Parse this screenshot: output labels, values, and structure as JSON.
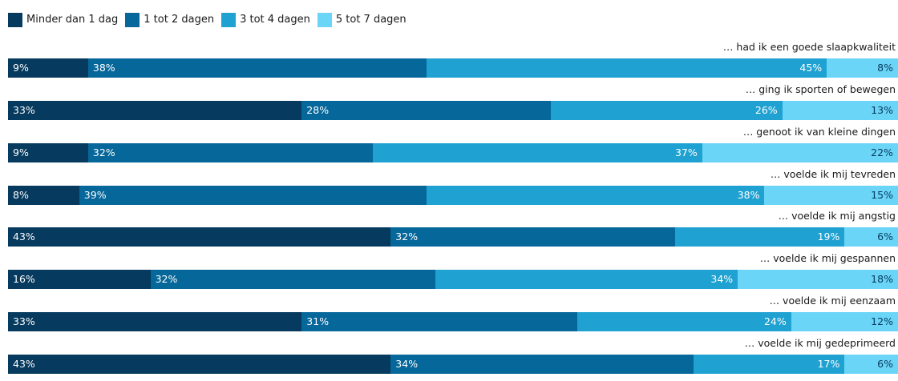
{
  "chart_data": {
    "type": "bar",
    "orientation": "horizontal",
    "stacked": true,
    "legend": "top-left",
    "series": [
      {
        "name": "Minder dan 1 dag",
        "color": "#063a5e",
        "text_color": "#ffffff",
        "values": [
          9,
          33,
          9,
          8,
          43,
          16,
          33,
          43
        ]
      },
      {
        "name": "1 tot 2 dagen",
        "color": "#06679a",
        "text_color": "#ffffff",
        "values": [
          38,
          28,
          32,
          39,
          32,
          32,
          31,
          34
        ]
      },
      {
        "name": "3 tot 4 dagen",
        "color": "#1fa1d1",
        "text_color": "#ffffff",
        "values": [
          45,
          26,
          37,
          38,
          19,
          34,
          24,
          17
        ]
      },
      {
        "name": "5 tot 7 dagen",
        "color": "#6ad5f7",
        "text_color": "#063a5e",
        "values": [
          8,
          13,
          22,
          15,
          6,
          18,
          12,
          6
        ]
      }
    ],
    "categories": [
      "… had ik een goede slaapkwaliteit",
      "… ging ik sporten of bewegen",
      "… genoot ik van kleine dingen",
      "… voelde ik mij tevreden",
      "… voelde ik mij angstig",
      "… voelde ik mij gespannen",
      "… voelde ik mij eenzaam",
      "… voelde ik mij gedeprimeerd"
    ],
    "value_suffix": "%"
  }
}
